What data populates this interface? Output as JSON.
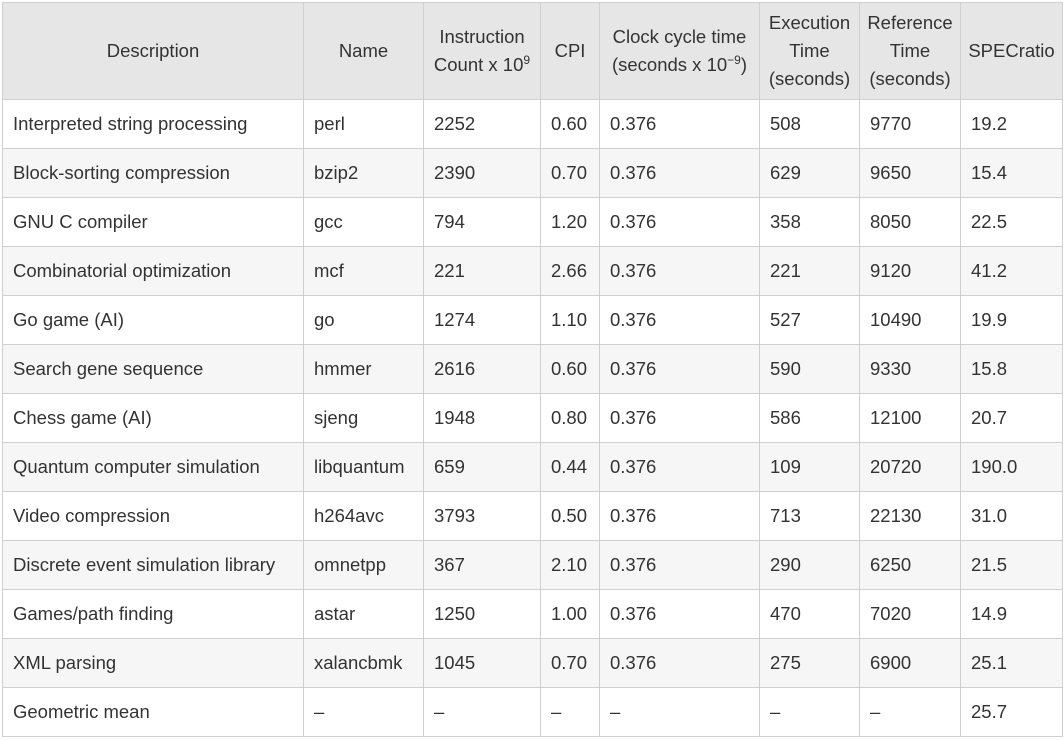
{
  "table": {
    "headers": {
      "description": "Description",
      "name": "Name",
      "instr_line1": "Instruction",
      "instr_line2": "Count x 10",
      "instr_sup": "9",
      "cpi": "CPI",
      "clock_line1": "Clock cycle time",
      "clock_line2": "(seconds x 10",
      "clock_sup": "−9",
      "clock_close": ")",
      "exec_line1": "Execution",
      "exec_line2": "Time",
      "exec_line3": "(seconds)",
      "ref_line1": "Reference",
      "ref_line2": "Time",
      "ref_line3": "(seconds)",
      "specratio": "SPECratio"
    },
    "rows": [
      [
        "Interpreted string processing",
        "perl",
        "2252",
        "0.60",
        "0.376",
        "508",
        "9770",
        "19.2"
      ],
      [
        "Block-sorting compression",
        "bzip2",
        "2390",
        "0.70",
        "0.376",
        "629",
        "9650",
        "15.4"
      ],
      [
        "GNU C compiler",
        "gcc",
        "794",
        "1.20",
        "0.376",
        "358",
        "8050",
        "22.5"
      ],
      [
        "Combinatorial optimization",
        "mcf",
        "221",
        "2.66",
        "0.376",
        "221",
        "9120",
        "41.2"
      ],
      [
        "Go game (AI)",
        "go",
        "1274",
        "1.10",
        "0.376",
        "527",
        "10490",
        "19.9"
      ],
      [
        "Search gene sequence",
        "hmmer",
        "2616",
        "0.60",
        "0.376",
        "590",
        "9330",
        "15.8"
      ],
      [
        "Chess game (AI)",
        "sjeng",
        "1948",
        "0.80",
        "0.376",
        "586",
        "12100",
        "20.7"
      ],
      [
        "Quantum computer simulation",
        "libquantum",
        "659",
        "0.44",
        "0.376",
        "109",
        "20720",
        "190.0"
      ],
      [
        "Video compression",
        "h264avc",
        "3793",
        "0.50",
        "0.376",
        "713",
        "22130",
        "31.0"
      ],
      [
        "Discrete event simulation library",
        "omnetpp",
        "367",
        "2.10",
        "0.376",
        "290",
        "6250",
        "21.5"
      ],
      [
        "Games/path finding",
        "astar",
        "1250",
        "1.00",
        "0.376",
        "470",
        "7020",
        "14.9"
      ],
      [
        "XML parsing",
        "xalancbmk",
        "1045",
        "0.70",
        "0.376",
        "275",
        "6900",
        "25.1"
      ],
      [
        "Geometric mean",
        "–",
        "–",
        "–",
        "–",
        "–",
        "–",
        "25.7"
      ]
    ]
  }
}
